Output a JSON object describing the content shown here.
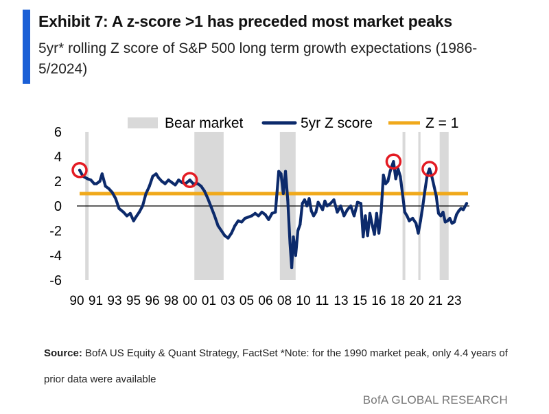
{
  "header": {
    "title": "Exhibit 7: A z-score >1 has preceded most market peaks",
    "subtitle": "5yr* rolling Z score of S&P 500 long term growth expectations (1986-5/2024)",
    "accent_color": "#1a5fd6"
  },
  "footer": {
    "source_label": "Source:",
    "source_text": " BofA US Equity & Quant Strategy, FactSet *Note: for the 1990 market peak, only 4.4 years of prior data were available",
    "brand": "BofA GLOBAL RESEARCH"
  },
  "chart_data": {
    "type": "line",
    "title": "Exhibit 7: A z-score >1 has preceded most market peaks",
    "subtitle": "5yr* rolling Z score of S&P 500 long term growth expectations (1986-5/2024)",
    "xlabel": "",
    "ylabel": "",
    "xlim": [
      1990,
      2024.4
    ],
    "ylim": [
      -6,
      6
    ],
    "y_ticks": [
      -6,
      -4,
      -2,
      0,
      2,
      4,
      6
    ],
    "x_ticks": [
      "90",
      "91",
      "93",
      "95",
      "96",
      "98",
      "00",
      "01",
      "03",
      "05",
      "06",
      "08",
      "10",
      "11",
      "13",
      "15",
      "16",
      "18",
      "20",
      "21",
      "23"
    ],
    "legend": {
      "placement": "top",
      "entries": [
        "Bear market",
        "5yr Z score",
        "Z = 1"
      ]
    },
    "colors": {
      "line": "#0c2a6b",
      "threshold": "#f0a91b",
      "bear": "#d9d9d9",
      "peak_marker": "#e31b23",
      "zero_line": "#000000"
    },
    "threshold": {
      "name": "Z = 1",
      "value": 1
    },
    "bear_markets": [
      {
        "start": 1990.5,
        "end": 1990.8
      },
      {
        "start": 2000.2,
        "end": 2002.8
      },
      {
        "start": 2007.8,
        "end": 2009.2
      },
      {
        "start": 2018.7,
        "end": 2018.95
      },
      {
        "start": 2020.1,
        "end": 2020.3
      },
      {
        "start": 2022.0,
        "end": 2022.8
      }
    ],
    "peak_markers": [
      {
        "x": 1990.0,
        "y": 2.9
      },
      {
        "x": 1999.8,
        "y": 2.1
      },
      {
        "x": 2017.9,
        "y": 3.6
      },
      {
        "x": 2021.1,
        "y": 3.0
      }
    ],
    "series": [
      {
        "name": "5yr Z score",
        "x": [
          1990.0,
          1990.3,
          1990.7,
          1991.0,
          1991.3,
          1991.5,
          1991.8,
          1992.0,
          1992.3,
          1992.6,
          1992.9,
          1993.2,
          1993.5,
          1993.9,
          1994.2,
          1994.5,
          1994.8,
          1995.0,
          1995.3,
          1995.6,
          1995.9,
          1996.2,
          1996.5,
          1996.8,
          1997.0,
          1997.3,
          1997.6,
          1997.9,
          1998.2,
          1998.5,
          1998.8,
          1999.1,
          1999.4,
          1999.8,
          2000.1,
          2000.5,
          2000.8,
          2001.1,
          2001.4,
          2001.7,
          2002.0,
          2002.3,
          2002.6,
          2002.9,
          2003.2,
          2003.5,
          2003.8,
          2004.1,
          2004.4,
          2004.7,
          2005.0,
          2005.3,
          2005.6,
          2005.9,
          2006.2,
          2006.5,
          2006.8,
          2007.1,
          2007.4,
          2007.7,
          2007.9,
          2008.1,
          2008.3,
          2008.5,
          2008.7,
          2008.85,
          2009.0,
          2009.2,
          2009.4,
          2009.6,
          2009.8,
          2010.0,
          2010.2,
          2010.4,
          2010.6,
          2010.8,
          2011.0,
          2011.2,
          2011.4,
          2011.6,
          2011.8,
          2012.0,
          2012.3,
          2012.6,
          2012.9,
          2013.2,
          2013.5,
          2013.8,
          2014.1,
          2014.4,
          2014.7,
          2015.0,
          2015.2,
          2015.4,
          2015.6,
          2015.8,
          2016.0,
          2016.2,
          2016.4,
          2016.6,
          2016.8,
          2017.0,
          2017.2,
          2017.4,
          2017.6,
          2017.9,
          2018.1,
          2018.3,
          2018.5,
          2018.7,
          2018.9,
          2019.1,
          2019.3,
          2019.6,
          2019.9,
          2020.1,
          2020.3,
          2020.5,
          2020.7,
          2020.9,
          2021.1,
          2021.3,
          2021.5,
          2021.7,
          2021.9,
          2022.1,
          2022.3,
          2022.5,
          2022.7,
          2022.9,
          2023.1,
          2023.3,
          2023.5,
          2023.7,
          2023.9,
          2024.1,
          2024.4
        ],
        "values": [
          2.9,
          2.4,
          2.2,
          2.1,
          1.8,
          1.8,
          2.0,
          2.6,
          1.6,
          1.4,
          1.1,
          0.6,
          -0.2,
          -0.5,
          -0.8,
          -0.6,
          -1.2,
          -0.9,
          -0.5,
          0.0,
          1.0,
          1.6,
          2.4,
          2.6,
          2.3,
          2.0,
          1.8,
          2.1,
          1.9,
          1.7,
          2.1,
          1.9,
          1.8,
          2.1,
          1.8,
          1.8,
          1.6,
          1.2,
          0.6,
          -0.1,
          -0.8,
          -1.6,
          -2.0,
          -2.4,
          -2.6,
          -2.2,
          -1.6,
          -1.2,
          -1.3,
          -1.0,
          -0.9,
          -0.8,
          -0.6,
          -0.8,
          -0.5,
          -0.7,
          -1.1,
          -0.6,
          -0.5,
          2.8,
          2.6,
          1.0,
          2.8,
          0.5,
          -3.0,
          -5.0,
          -2.5,
          -4.0,
          -2.0,
          -1.5,
          0.2,
          0.5,
          0.0,
          0.6,
          -0.4,
          -0.8,
          -0.5,
          0.3,
          0.0,
          -0.3,
          0.4,
          0.0,
          0.2,
          0.5,
          -0.5,
          0.0,
          -0.8,
          -0.3,
          0.0,
          -0.8,
          0.3,
          0.2,
          -2.5,
          -0.8,
          -2.4,
          -0.6,
          -1.5,
          -2.3,
          -0.6,
          -2.2,
          -0.5,
          2.5,
          1.8,
          2.0,
          2.8,
          3.6,
          2.2,
          3.0,
          2.4,
          1.0,
          -0.5,
          -0.8,
          -1.2,
          -1.0,
          -1.4,
          -2.2,
          -1.2,
          0.0,
          1.3,
          2.5,
          3.0,
          2.4,
          1.6,
          0.8,
          -0.6,
          -0.8,
          -0.5,
          -1.3,
          -1.2,
          -1.0,
          -1.4,
          -1.3,
          -0.7,
          -0.4,
          -0.2,
          -0.3,
          0.2
        ]
      }
    ]
  }
}
